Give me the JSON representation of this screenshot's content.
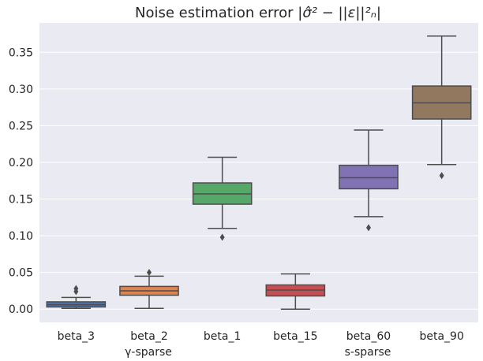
{
  "chart_data": {
    "type": "box",
    "title": "Noise estimation error",
    "title_formula": "|σ̂² − ||ε||²ₙ|",
    "xlabel": "",
    "ylabel": "",
    "ylim": [
      -0.018,
      0.39
    ],
    "yticks": [
      "0.00",
      "0.05",
      "0.10",
      "0.15",
      "0.20",
      "0.25",
      "0.30",
      "0.35"
    ],
    "ytick_values": [
      0.0,
      0.05,
      0.1,
      0.15,
      0.2,
      0.25,
      0.3,
      0.35
    ],
    "grid": true,
    "background": "#eaeaf2",
    "categories": [
      "beta_3",
      "beta_2",
      "beta_1",
      "beta_15",
      "beta_60",
      "beta_90"
    ],
    "groups": [
      {
        "label": "γ-sparse",
        "categories": [
          "beta_3",
          "beta_2"
        ]
      },
      {
        "label": "s-sparse",
        "categories": [
          "beta_15",
          "beta_60",
          "beta_90"
        ]
      }
    ],
    "boxes": [
      {
        "name": "beta_3",
        "color": "#4c72b0",
        "whisker_low": 0.001,
        "q1": 0.003,
        "median": 0.006,
        "q3": 0.01,
        "whisker_high": 0.016,
        "outliers": [
          0.024,
          0.028
        ]
      },
      {
        "name": "beta_2",
        "color": "#dd8452",
        "whisker_low": 0.001,
        "q1": 0.019,
        "median": 0.025,
        "q3": 0.031,
        "whisker_high": 0.045,
        "outliers": [
          0.05
        ]
      },
      {
        "name": "beta_1",
        "color": "#55a868",
        "whisker_low": 0.11,
        "q1": 0.143,
        "median": 0.157,
        "q3": 0.172,
        "whisker_high": 0.207,
        "outliers": [
          0.098
        ]
      },
      {
        "name": "beta_15",
        "color": "#c44e52",
        "whisker_low": 0.0,
        "q1": 0.018,
        "median": 0.026,
        "q3": 0.033,
        "whisker_high": 0.048,
        "outliers": []
      },
      {
        "name": "beta_60",
        "color": "#8172b3",
        "whisker_low": 0.126,
        "q1": 0.164,
        "median": 0.179,
        "q3": 0.196,
        "whisker_high": 0.244,
        "outliers": [
          0.111
        ]
      },
      {
        "name": "beta_90",
        "color": "#937860",
        "whisker_low": 0.197,
        "q1": 0.259,
        "median": 0.281,
        "q3": 0.304,
        "whisker_high": 0.372,
        "outliers": [
          0.182
        ]
      }
    ]
  }
}
